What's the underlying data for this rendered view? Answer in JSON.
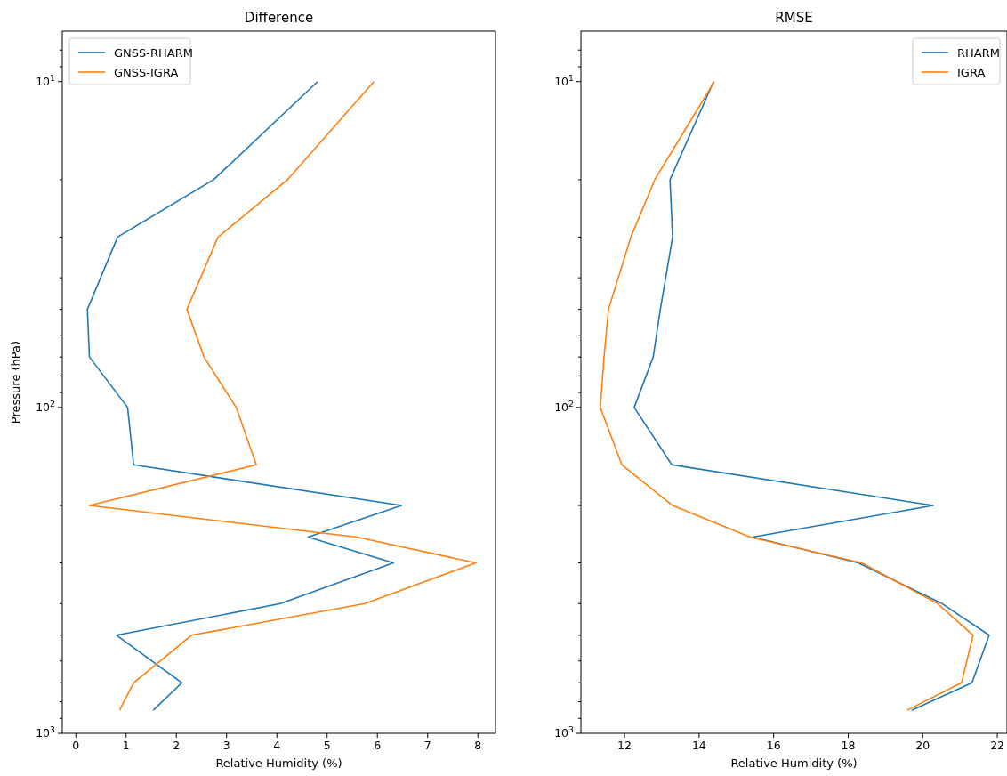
{
  "chart_data": [
    {
      "type": "line",
      "title": "Difference",
      "xlabel": "Relative Humidity (%)",
      "ylabel": "Pressure (hPa)",
      "log": "y",
      "legend": "top left",
      "xlim": [
        -0.27,
        8.35
      ],
      "xticks": [
        0,
        1,
        2,
        3,
        4,
        5,
        6,
        7,
        8
      ],
      "ylim": [
        1000,
        7
      ],
      "yticks": [
        {
          "value": 10,
          "label": "10$^{1}$"
        },
        {
          "value": 100,
          "label": "10$^{2}$"
        },
        {
          "value": 1000,
          "label": "10$^{3}$"
        },
        {
          "value": 8,
          "label": null
        },
        {
          "value": 9,
          "label": null
        },
        {
          "value": 20,
          "label": null
        },
        {
          "value": 30,
          "label": null
        },
        {
          "value": 40,
          "label": null
        },
        {
          "value": 50,
          "label": null
        },
        {
          "value": 60,
          "label": null
        },
        {
          "value": 70,
          "label": null
        },
        {
          "value": 80,
          "label": null
        },
        {
          "value": 90,
          "label": null
        },
        {
          "value": 200,
          "label": null
        },
        {
          "value": 300,
          "label": null
        },
        {
          "value": 400,
          "label": null
        },
        {
          "value": 500,
          "label": null
        },
        {
          "value": 600,
          "label": null
        },
        {
          "value": 700,
          "label": null
        },
        {
          "value": 800,
          "label": null
        },
        {
          "value": 900,
          "label": null
        }
      ],
      "series": [
        {
          "name": "GNSS-RHARM",
          "color": "#1f77b4",
          "x": [
            4.81,
            2.74,
            0.83,
            0.23,
            0.27,
            1.03,
            1.15,
            6.48,
            4.62,
            6.32,
            4.07,
            0.81,
            2.11,
            1.54
          ],
          "values": [
            10,
            20,
            30,
            50,
            70,
            100,
            150,
            200,
            250,
            300,
            400,
            500,
            700,
            850
          ]
        },
        {
          "name": "GNSS-IGRA",
          "color": "#ff7f0e",
          "x": [
            5.93,
            4.21,
            2.83,
            2.21,
            2.55,
            3.19,
            3.59,
            0.27,
            5.59,
            7.96,
            5.75,
            2.3,
            1.15,
            0.87
          ],
          "values": [
            10,
            20,
            30,
            50,
            70,
            100,
            150,
            200,
            250,
            300,
            400,
            500,
            700,
            850
          ]
        }
      ]
    },
    {
      "type": "line",
      "title": "RMSE",
      "xlabel": "Relative Humidity (%)",
      "log": "y",
      "legend": "top right",
      "xlim": [
        10.83,
        22.26
      ],
      "xticks": [
        12,
        14,
        16,
        18,
        20,
        22
      ],
      "ylim": [
        1000,
        7
      ],
      "yticks": [
        {
          "value": 10,
          "label": "10$^{1}$"
        },
        {
          "value": 100,
          "label": "10$^{2}$"
        },
        {
          "value": 1000,
          "label": "10$^{3}$"
        },
        {
          "value": 8,
          "label": null
        },
        {
          "value": 9,
          "label": null
        },
        {
          "value": 20,
          "label": null
        },
        {
          "value": 30,
          "label": null
        },
        {
          "value": 40,
          "label": null
        },
        {
          "value": 50,
          "label": null
        },
        {
          "value": 60,
          "label": null
        },
        {
          "value": 70,
          "label": null
        },
        {
          "value": 80,
          "label": null
        },
        {
          "value": 90,
          "label": null
        },
        {
          "value": 200,
          "label": null
        },
        {
          "value": 300,
          "label": null
        },
        {
          "value": 400,
          "label": null
        },
        {
          "value": 500,
          "label": null
        },
        {
          "value": 600,
          "label": null
        },
        {
          "value": 700,
          "label": null
        },
        {
          "value": 800,
          "label": null
        },
        {
          "value": 900,
          "label": null
        }
      ],
      "series": [
        {
          "name": "RHARM",
          "color": "#1f77b4",
          "x": [
            14.39,
            13.22,
            13.29,
            12.96,
            12.77,
            12.26,
            13.27,
            20.28,
            15.44,
            18.27,
            20.52,
            21.78,
            21.32,
            19.7
          ],
          "values": [
            10,
            20,
            30,
            50,
            70,
            100,
            150,
            200,
            250,
            300,
            400,
            500,
            700,
            850
          ]
        },
        {
          "name": "IGRA",
          "color": "#ff7f0e",
          "x": [
            14.41,
            12.81,
            12.17,
            11.57,
            11.45,
            11.35,
            11.93,
            13.29,
            15.37,
            18.36,
            20.4,
            21.35,
            21.04,
            19.58
          ],
          "values": [
            10,
            20,
            30,
            50,
            70,
            100,
            150,
            200,
            250,
            300,
            400,
            500,
            700,
            850
          ]
        }
      ]
    }
  ]
}
